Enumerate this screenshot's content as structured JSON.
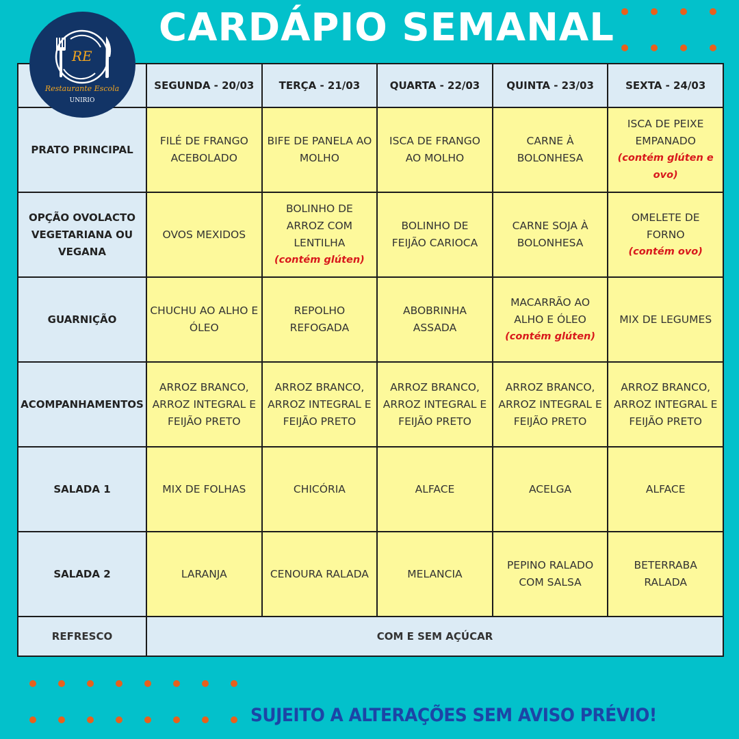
{
  "title": "CARDÁPIO SEMANAL",
  "logo": {
    "initials": "RE",
    "name": "Restaurante Escola",
    "institution": "UNIRIO"
  },
  "colors": {
    "background": "#03c1cb",
    "header_cell": "#dcebf5",
    "menu_cell": "#fdf99b",
    "allergen_note": "#d8191c",
    "dots": "#e8601c",
    "footer_text": "#1c45a6"
  },
  "days": [
    "SEGUNDA - 20/03",
    "TERÇA - 21/03",
    "QUARTA - 22/03",
    "QUINTA - 23/03",
    "SEXTA - 24/03"
  ],
  "rows": [
    {
      "label": "PRATO PRINCIPAL",
      "cells": [
        {
          "lines": [
            "FILÉ DE FRANGO",
            "ACEBOLADO"
          ]
        },
        {
          "lines": [
            "BIFE DE PANELA AO",
            "MOLHO"
          ]
        },
        {
          "lines": [
            "ISCA DE FRANGO",
            "AO MOLHO"
          ]
        },
        {
          "lines": [
            "CARNE À",
            "BOLONHESA"
          ]
        },
        {
          "lines": [
            "ISCA DE PEIXE",
            "EMPANADO"
          ],
          "note": [
            "(contém glúten e",
            "ovo)"
          ]
        }
      ]
    },
    {
      "label": "OPÇÃO OVOLACTO VEGETARIANA OU VEGANA",
      "cells": [
        {
          "lines": [
            "OVOS MEXIDOS"
          ]
        },
        {
          "lines": [
            "BOLINHO DE",
            "ARROZ COM",
            "LENTILHA"
          ],
          "note": [
            "(contém glúten)"
          ]
        },
        {
          "lines": [
            "BOLINHO DE",
            "FEIJÃO CARIOCA"
          ]
        },
        {
          "lines": [
            "CARNE SOJA À",
            "BOLONHESA"
          ]
        },
        {
          "lines": [
            "OMELETE DE",
            "FORNO"
          ],
          "note": [
            "(contém ovo)"
          ]
        }
      ]
    },
    {
      "label": "GUARNIÇÃO",
      "cells": [
        {
          "lines": [
            "CHUCHU AO ALHO E",
            "ÓLEO"
          ]
        },
        {
          "lines": [
            "REPOLHO",
            "REFOGADA"
          ]
        },
        {
          "lines": [
            "ABOBRINHA",
            "ASSADA"
          ]
        },
        {
          "lines": [
            "MACARRÃO AO",
            "ALHO E ÓLEO"
          ],
          "note": [
            "(contém glúten)"
          ]
        },
        {
          "lines": [
            "MIX DE LEGUMES"
          ]
        }
      ]
    },
    {
      "label": "ACOMPANHAMENTOS",
      "cells": [
        {
          "lines": [
            "ARROZ BRANCO,",
            "ARROZ INTEGRAL E",
            "FEIJÃO PRETO"
          ]
        },
        {
          "lines": [
            "ARROZ BRANCO,",
            "ARROZ INTEGRAL E",
            "FEIJÃO PRETO"
          ]
        },
        {
          "lines": [
            "ARROZ BRANCO,",
            "ARROZ INTEGRAL E",
            "FEIJÃO PRETO"
          ]
        },
        {
          "lines": [
            "ARROZ BRANCO,",
            "ARROZ INTEGRAL E",
            "FEIJÃO PRETO"
          ]
        },
        {
          "lines": [
            "ARROZ BRANCO,",
            "ARROZ INTEGRAL E",
            "FEIJÃO PRETO"
          ]
        }
      ]
    },
    {
      "label": "SALADA 1",
      "cells": [
        {
          "lines": [
            "MIX DE FOLHAS"
          ]
        },
        {
          "lines": [
            "CHICÓRIA"
          ]
        },
        {
          "lines": [
            "ALFACE"
          ]
        },
        {
          "lines": [
            "ACELGA"
          ]
        },
        {
          "lines": [
            "ALFACE"
          ]
        }
      ]
    },
    {
      "label": "SALADA 2",
      "cells": [
        {
          "lines": [
            "LARANJA"
          ]
        },
        {
          "lines": [
            "CENOURA RALADA"
          ]
        },
        {
          "lines": [
            "MELANCIA"
          ]
        },
        {
          "lines": [
            "PEPINO RALADO",
            "COM SALSA"
          ]
        },
        {
          "lines": [
            "BETERRABA",
            "RALADA"
          ]
        }
      ]
    }
  ],
  "refresco": {
    "label": "REFRESCO",
    "value": "COM E SEM AÇÚCAR"
  },
  "footer": "SUJEITO A ALTERAÇÕES SEM AVISO PRÉVIO!"
}
